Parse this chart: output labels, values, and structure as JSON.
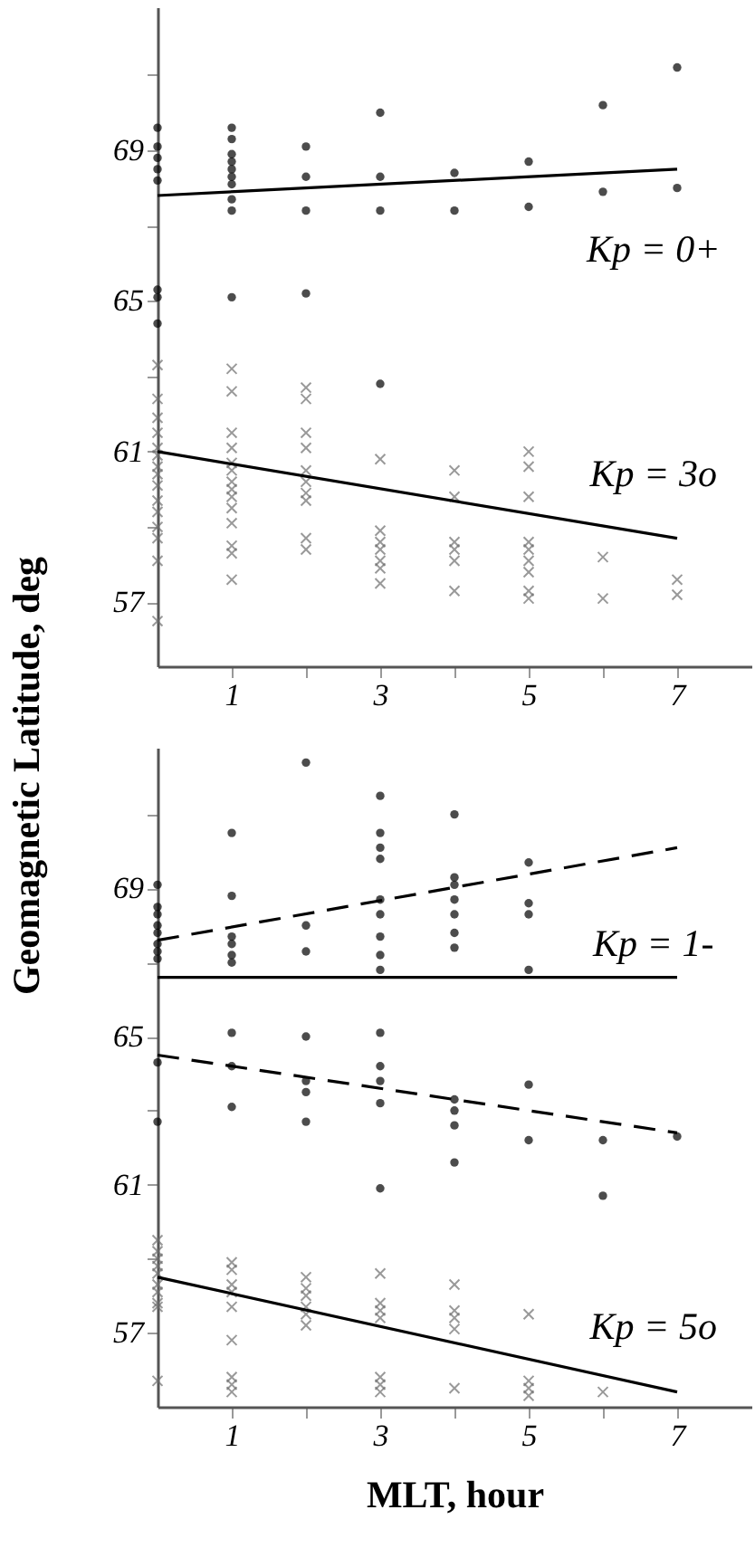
{
  "chart_data": [
    {
      "type": "scatter",
      "ylabel": "Geomagnetic Latitude, deg",
      "xlim": [
        0,
        8
      ],
      "ylim": [
        55.3,
        72.8
      ],
      "xticks": [
        1,
        {
          "value": 2,
          "label": null
        },
        3,
        {
          "value": 4,
          "label": null
        },
        5,
        {
          "value": 6,
          "label": null
        },
        7
      ],
      "yticks": [
        57,
        {
          "value": 59,
          "label": null
        },
        61,
        {
          "value": 63,
          "label": null
        },
        65,
        {
          "value": 67,
          "label": null
        },
        69,
        {
          "value": 71,
          "label": null
        }
      ],
      "grid": false,
      "series": [
        {
          "marker": "circle",
          "color": "#000000",
          "x": [
            0,
            0,
            0,
            0,
            0,
            0,
            0,
            0,
            1,
            1,
            1,
            1,
            1,
            1,
            1,
            1,
            1,
            1,
            2,
            2,
            2,
            2,
            3,
            3,
            3,
            3,
            4,
            4,
            5,
            5,
            6,
            6,
            7,
            7
          ],
          "values": [
            69.6,
            69.1,
            68.8,
            68.5,
            68.2,
            65.3,
            65.1,
            64.4,
            69.6,
            69.3,
            68.9,
            68.7,
            68.5,
            68.3,
            68.1,
            67.7,
            67.4,
            65.1,
            69.1,
            68.3,
            67.4,
            65.2,
            70.0,
            68.3,
            67.4,
            62.8,
            68.4,
            67.4,
            68.7,
            67.5,
            70.2,
            67.9,
            71.2,
            68.0
          ]
        },
        {
          "marker": "cross",
          "color": "#6e6e6e",
          "x": [
            0,
            0,
            0,
            0,
            0,
            0,
            0,
            0,
            0,
            0,
            0,
            0,
            0,
            0,
            0,
            1,
            1,
            1,
            1,
            1,
            1,
            1,
            1,
            1,
            1,
            1,
            1,
            1,
            1,
            2,
            2,
            2,
            2,
            2,
            2,
            2,
            2,
            2,
            2,
            3,
            3,
            3,
            3,
            3,
            3,
            3,
            4,
            4,
            4,
            4,
            4,
            4,
            5,
            5,
            5,
            5,
            5,
            5,
            5,
            5,
            5,
            6,
            6,
            7,
            7
          ],
          "values": [
            63.3,
            62.4,
            61.9,
            61.5,
            61.1,
            60.9,
            60.6,
            60.4,
            60.1,
            59.7,
            59.4,
            59.0,
            58.7,
            58.1,
            56.5,
            63.2,
            62.6,
            61.5,
            61.1,
            60.7,
            60.5,
            60.2,
            60.0,
            59.8,
            59.5,
            59.1,
            58.5,
            58.3,
            57.6,
            62.7,
            62.4,
            61.5,
            61.1,
            60.5,
            60.2,
            59.9,
            59.7,
            58.7,
            58.4,
            60.8,
            58.9,
            58.6,
            58.4,
            58.1,
            57.9,
            57.5,
            60.5,
            59.8,
            58.6,
            58.4,
            58.1,
            57.3,
            61.0,
            60.6,
            59.8,
            58.6,
            58.4,
            58.1,
            57.8,
            57.3,
            57.1,
            58.2,
            57.1,
            57.6,
            57.2
          ]
        },
        {
          "type": "line",
          "line_style": "solid",
          "color": "#000000",
          "x": [
            0,
            7
          ],
          "values": [
            67.8,
            68.5
          ]
        },
        {
          "type": "line",
          "line_style": "solid",
          "color": "#000000",
          "x": [
            0,
            7
          ],
          "values": [
            61.0,
            58.7
          ]
        }
      ],
      "annotations": [
        "Kp = 0+",
        "Kp = 3o"
      ]
    },
    {
      "type": "scatter",
      "xlabel": "MLT, hour",
      "xlim": [
        0,
        8
      ],
      "ylim": [
        55.0,
        72.8
      ],
      "xticks": [
        1,
        {
          "value": 2,
          "label": null
        },
        3,
        {
          "value": 4,
          "label": null
        },
        5,
        {
          "value": 6,
          "label": null
        },
        7
      ],
      "yticks": [
        57,
        {
          "value": 59,
          "label": null
        },
        61,
        {
          "value": 63,
          "label": null
        },
        65,
        {
          "value": 67,
          "label": null
        },
        69,
        {
          "value": 71,
          "label": null
        }
      ],
      "grid": false,
      "series": [
        {
          "marker": "circle",
          "color": "#000000",
          "x": [
            0,
            0,
            0,
            0,
            0,
            0,
            0,
            0,
            1,
            1,
            1,
            1,
            1,
            1,
            2,
            2,
            2,
            3,
            3,
            3,
            3,
            3,
            3,
            3,
            3,
            3,
            4,
            4,
            4,
            4,
            4,
            4,
            4,
            5,
            5,
            5,
            5
          ],
          "values": [
            69.1,
            68.5,
            68.3,
            68.0,
            67.8,
            67.5,
            67.3,
            67.1,
            70.5,
            68.8,
            67.7,
            67.5,
            67.2,
            67.0,
            72.4,
            68.0,
            67.3,
            71.5,
            70.5,
            70.1,
            69.8,
            68.7,
            68.3,
            67.7,
            67.2,
            66.8,
            71.0,
            69.3,
            69.1,
            68.7,
            68.3,
            67.8,
            67.4,
            69.7,
            68.6,
            68.3,
            66.8
          ]
        },
        {
          "marker": "circle",
          "color": "#000000",
          "x": [
            0,
            0,
            1,
            1,
            1,
            2,
            2,
            2,
            2,
            3,
            3,
            3,
            3,
            3,
            4,
            4,
            4,
            4,
            5,
            5,
            6,
            6,
            7
          ],
          "values": [
            64.3,
            62.7,
            65.1,
            64.2,
            63.1,
            65.0,
            63.8,
            63.5,
            62.7,
            65.1,
            64.2,
            63.8,
            63.2,
            60.9,
            63.3,
            63.0,
            62.6,
            61.6,
            63.7,
            62.2,
            62.2,
            60.7,
            62.3
          ]
        },
        {
          "marker": "cross",
          "color": "#6e6e6e",
          "x": [
            0,
            0,
            0,
            0,
            0,
            0,
            0,
            0,
            0,
            0,
            1,
            1,
            1,
            1,
            1,
            1,
            1,
            1,
            1,
            2,
            2,
            2,
            2,
            2,
            2,
            3,
            3,
            3,
            3,
            3,
            3,
            3,
            4,
            4,
            4,
            4,
            4,
            5,
            5,
            5,
            5,
            6
          ],
          "values": [
            59.5,
            59.2,
            59.0,
            58.8,
            58.6,
            58.3,
            58.1,
            57.8,
            57.7,
            55.7,
            58.9,
            58.7,
            58.3,
            58.1,
            57.7,
            56.8,
            55.8,
            55.6,
            55.4,
            58.5,
            58.2,
            58.0,
            57.7,
            57.5,
            57.2,
            58.6,
            57.8,
            57.6,
            57.4,
            55.8,
            55.6,
            55.4,
            58.3,
            57.6,
            57.4,
            57.1,
            55.5,
            57.5,
            55.7,
            55.5,
            55.3,
            55.4
          ]
        },
        {
          "type": "line",
          "line_style": "dashed",
          "color": "#000000",
          "x": [
            0,
            7
          ],
          "values": [
            67.6,
            70.1
          ]
        },
        {
          "type": "line",
          "line_style": "solid",
          "color": "#000000",
          "x": [
            0,
            7
          ],
          "values": [
            66.6,
            66.6
          ]
        },
        {
          "type": "line",
          "line_style": "dashed",
          "color": "#000000",
          "x": [
            0,
            7
          ],
          "values": [
            64.5,
            62.4
          ]
        },
        {
          "type": "line",
          "line_style": "solid",
          "color": "#000000",
          "x": [
            0,
            7
          ],
          "values": [
            58.5,
            55.4
          ]
        }
      ],
      "annotations": [
        "Kp = 1-",
        "Kp = 5o"
      ]
    }
  ]
}
